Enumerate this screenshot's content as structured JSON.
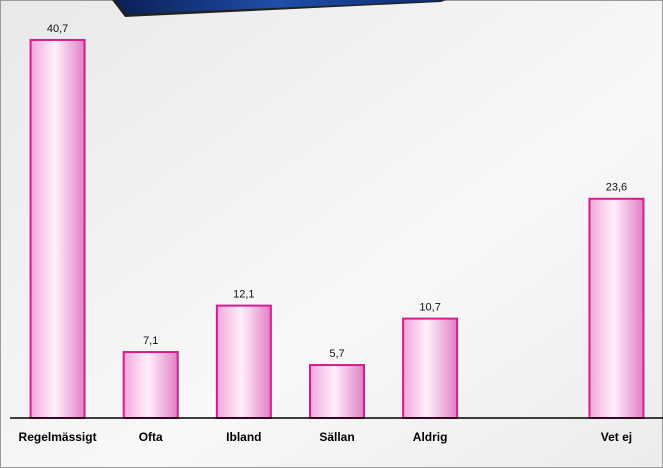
{
  "chart_data": {
    "type": "bar",
    "categories": [
      "Regelmässigt",
      "Ofta",
      "Ibland",
      "Sällan",
      "Aldrig",
      null,
      "Vet ej"
    ],
    "values": [
      40.7,
      7.1,
      12.1,
      5.7,
      10.7,
      null,
      23.6
    ],
    "value_labels": [
      "40,7",
      "7,1",
      "12,1",
      "5,7",
      "10,7",
      null,
      "23,6"
    ],
    "color": "#d81b8c",
    "ylim": [
      0,
      45
    ]
  }
}
